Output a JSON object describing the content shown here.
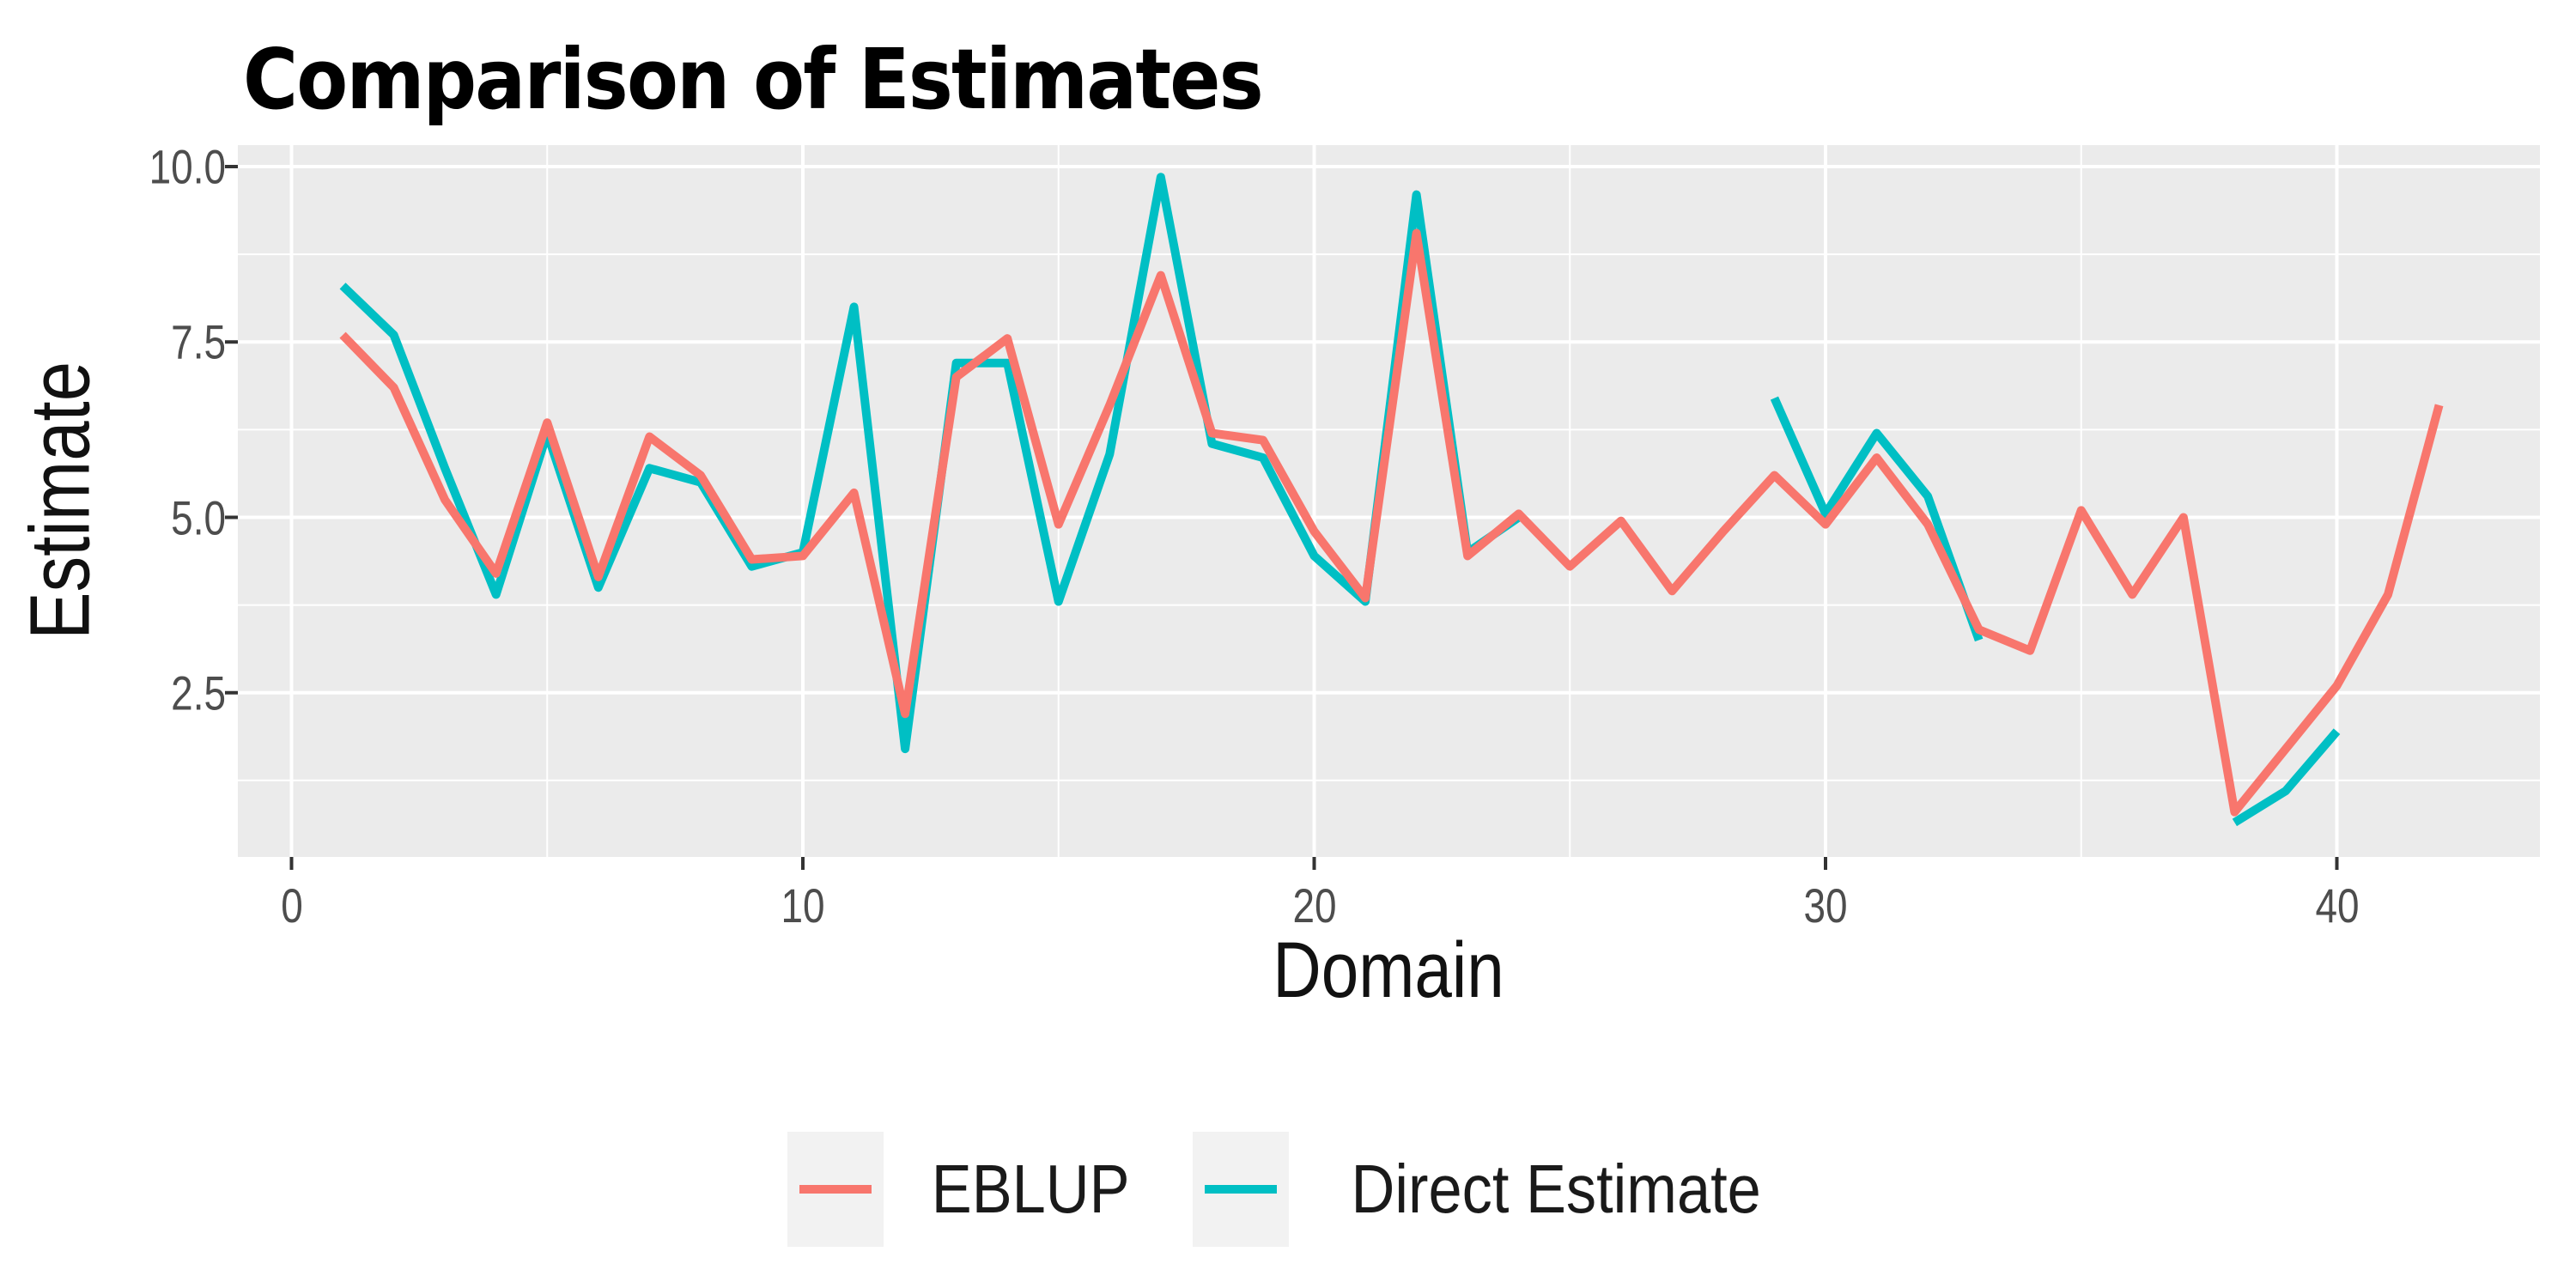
{
  "chart_data": {
    "type": "line",
    "title": "Comparison of Estimates",
    "xlabel": "Domain",
    "ylabel": "Estimate",
    "x_ticks": [
      0,
      10,
      20,
      30,
      40
    ],
    "x_tick_labels": [
      "0",
      "10",
      "20",
      "30",
      "40"
    ],
    "x_minor_ticks": [
      5,
      15,
      25,
      35
    ],
    "y_ticks": [
      2.5,
      5.0,
      7.5,
      10.0
    ],
    "y_tick_labels": [
      "2.5",
      "5.0",
      "7.5",
      "10.0"
    ],
    "y_minor_ticks": [
      1.25,
      3.75,
      6.25,
      8.75
    ],
    "xlim": [
      -1,
      44
    ],
    "ylim": [
      0.15,
      10.3
    ],
    "grid": "white major+minor gridlines on gray panel",
    "legend_position": "bottom-center",
    "x": [
      1,
      2,
      3,
      4,
      5,
      6,
      7,
      8,
      9,
      10,
      11,
      12,
      13,
      14,
      15,
      16,
      17,
      18,
      19,
      20,
      21,
      22,
      23,
      24,
      25,
      26,
      27,
      28,
      29,
      30,
      31,
      32,
      33,
      34,
      35,
      36,
      37,
      38,
      39,
      40,
      41,
      42
    ],
    "series": [
      {
        "name": "EBLUP",
        "color": "#F8766D",
        "values": [
          7.6,
          6.85,
          5.25,
          4.2,
          6.35,
          4.15,
          6.15,
          5.6,
          4.4,
          4.45,
          5.35,
          2.2,
          7.0,
          7.55,
          4.9,
          6.6,
          8.45,
          6.2,
          6.1,
          4.8,
          3.85,
          9.05,
          4.45,
          5.05,
          4.3,
          4.95,
          3.95,
          4.8,
          5.6,
          4.9,
          5.85,
          4.9,
          3.4,
          3.1,
          5.1,
          3.9,
          5.0,
          0.8,
          1.7,
          2.6,
          3.9,
          6.6
        ]
      },
      {
        "name": "Direct Estimate",
        "color": "#00BFC4",
        "values": [
          8.3,
          7.6,
          5.7,
          3.9,
          6.2,
          4.0,
          5.7,
          5.5,
          4.3,
          4.5,
          8.0,
          1.7,
          7.2,
          7.2,
          3.8,
          5.9,
          9.85,
          6.05,
          5.85,
          4.45,
          3.8,
          9.6,
          4.5,
          5.0,
          null,
          null,
          null,
          null,
          6.7,
          5.05,
          6.2,
          5.3,
          3.25,
          null,
          null,
          null,
          null,
          0.65,
          1.1,
          1.95,
          null,
          null
        ]
      }
    ]
  },
  "colors": {
    "panel_bg": "#EBEBEB",
    "grid": "#FFFFFF",
    "tick_mark": "#333333",
    "tick_text": "#4D4D4D",
    "text": "#111111",
    "legend_key_bg": "#F2F2F2",
    "page_bg": "#FFFFFF"
  }
}
